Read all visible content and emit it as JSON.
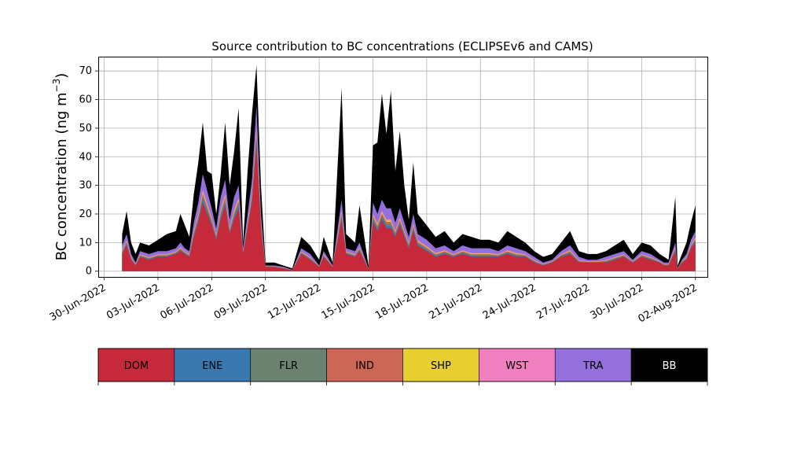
{
  "chart_data": {
    "type": "area",
    "stacked": true,
    "title": "Source contribution to BC concentrations (ECLIPSEv6 and CAMS)",
    "ylabel": "BC concentration (ng m",
    "ylabel_exponent": "−3",
    "ylabel_suffix": ")",
    "xlabel": "",
    "ylim": [
      -2,
      75
    ],
    "y_ticks": [
      0,
      10,
      20,
      30,
      40,
      50,
      60,
      70
    ],
    "x_range": [
      "2022-06-29T16:00",
      "2022-08-02T16:00"
    ],
    "x_ticks": [
      "2022-06-30",
      "2022-07-03",
      "2022-07-06",
      "2022-07-09",
      "2022-07-12",
      "2022-07-15",
      "2022-07-18",
      "2022-07-21",
      "2022-07-24",
      "2022-07-27",
      "2022-07-30",
      "2022-08-02"
    ],
    "x_tick_labels": [
      "30-Jun-2022",
      "03-Jul-2022",
      "06-Jul-2022",
      "09-Jul-2022",
      "12-Jul-2022",
      "15-Jul-2022",
      "18-Jul-2022",
      "21-Jul-2022",
      "24-Jul-2022",
      "27-Jul-2022",
      "30-Jul-2022",
      "02-Aug-2022"
    ],
    "grid": true,
    "series_colors": {
      "DOM": "#c62a3a",
      "ENE": "#3a78b0",
      "FLR": "#6b8270",
      "IND": "#cc6655",
      "SHP": "#e6cf2e",
      "WST": "#f080c0",
      "TRA": "#9370db",
      "BB": "#000000"
    },
    "total_points": [
      [
        "2022-07-01T00:00",
        13
      ],
      [
        "2022-07-01T06:00",
        21
      ],
      [
        "2022-07-01T12:00",
        10
      ],
      [
        "2022-07-01T18:00",
        6
      ],
      [
        "2022-07-02T00:00",
        10
      ],
      [
        "2022-07-02T12:00",
        9
      ],
      [
        "2022-07-03T00:00",
        11
      ],
      [
        "2022-07-03T12:00",
        13
      ],
      [
        "2022-07-04T00:00",
        14
      ],
      [
        "2022-07-04T06:00",
        20
      ],
      [
        "2022-07-04T12:00",
        16
      ],
      [
        "2022-07-04T18:00",
        12
      ],
      [
        "2022-07-05T00:00",
        27
      ],
      [
        "2022-07-05T06:00",
        38
      ],
      [
        "2022-07-05T12:00",
        52
      ],
      [
        "2022-07-05T18:00",
        35
      ],
      [
        "2022-07-06T00:00",
        34
      ],
      [
        "2022-07-06T06:00",
        20
      ],
      [
        "2022-07-06T12:00",
        34
      ],
      [
        "2022-07-06T18:00",
        52
      ],
      [
        "2022-07-07T00:00",
        30
      ],
      [
        "2022-07-07T06:00",
        42
      ],
      [
        "2022-07-07T12:00",
        57
      ],
      [
        "2022-07-07T18:00",
        10
      ],
      [
        "2022-07-08T00:00",
        35
      ],
      [
        "2022-07-08T06:00",
        55
      ],
      [
        "2022-07-08T12:00",
        72
      ],
      [
        "2022-07-08T18:00",
        30
      ],
      [
        "2022-07-09T00:00",
        3
      ],
      [
        "2022-07-09T12:00",
        3
      ],
      [
        "2022-07-10T00:00",
        2
      ],
      [
        "2022-07-10T12:00",
        1
      ],
      [
        "2022-07-11T00:00",
        12
      ],
      [
        "2022-07-11T12:00",
        9
      ],
      [
        "2022-07-12T00:00",
        4
      ],
      [
        "2022-07-12T06:00",
        12
      ],
      [
        "2022-07-12T18:00",
        3
      ],
      [
        "2022-07-13T06:00",
        64
      ],
      [
        "2022-07-13T12:00",
        13
      ],
      [
        "2022-07-14T00:00",
        10
      ],
      [
        "2022-07-14T06:00",
        23
      ],
      [
        "2022-07-14T18:00",
        2
      ],
      [
        "2022-07-15T00:00",
        44
      ],
      [
        "2022-07-15T06:00",
        45
      ],
      [
        "2022-07-15T12:00",
        62
      ],
      [
        "2022-07-15T18:00",
        48
      ],
      [
        "2022-07-16T00:00",
        63
      ],
      [
        "2022-07-16T06:00",
        35
      ],
      [
        "2022-07-16T12:00",
        49
      ],
      [
        "2022-07-16T18:00",
        30
      ],
      [
        "2022-07-17T00:00",
        18
      ],
      [
        "2022-07-17T06:00",
        38
      ],
      [
        "2022-07-17T12:00",
        20
      ],
      [
        "2022-07-18T00:00",
        16
      ],
      [
        "2022-07-18T12:00",
        12
      ],
      [
        "2022-07-19T00:00",
        14
      ],
      [
        "2022-07-19T12:00",
        10
      ],
      [
        "2022-07-20T00:00",
        13
      ],
      [
        "2022-07-20T12:00",
        12
      ],
      [
        "2022-07-21T00:00",
        11
      ],
      [
        "2022-07-21T12:00",
        11
      ],
      [
        "2022-07-22T00:00",
        10
      ],
      [
        "2022-07-22T12:00",
        14
      ],
      [
        "2022-07-23T00:00",
        12
      ],
      [
        "2022-07-23T12:00",
        10
      ],
      [
        "2022-07-24T00:00",
        7
      ],
      [
        "2022-07-24T12:00",
        5
      ],
      [
        "2022-07-25T00:00",
        6
      ],
      [
        "2022-07-25T12:00",
        10
      ],
      [
        "2022-07-26T00:00",
        14
      ],
      [
        "2022-07-26T12:00",
        7
      ],
      [
        "2022-07-27T00:00",
        6
      ],
      [
        "2022-07-27T12:00",
        6
      ],
      [
        "2022-07-28T00:00",
        7
      ],
      [
        "2022-07-28T12:00",
        9
      ],
      [
        "2022-07-29T00:00",
        11
      ],
      [
        "2022-07-29T12:00",
        6
      ],
      [
        "2022-07-30T00:00",
        10
      ],
      [
        "2022-07-30T12:00",
        9
      ],
      [
        "2022-07-31T00:00",
        6
      ],
      [
        "2022-07-31T06:00",
        5
      ],
      [
        "2022-07-31T12:00",
        4
      ],
      [
        "2022-07-31T21:00",
        26
      ],
      [
        "2022-08-01T00:00",
        2
      ],
      [
        "2022-08-01T06:00",
        6
      ],
      [
        "2022-08-01T12:00",
        10
      ],
      [
        "2022-08-01T18:00",
        17
      ],
      [
        "2022-08-02T00:00",
        23
      ]
    ],
    "tra_upper_points": [
      [
        "2022-07-01T00:00",
        9
      ],
      [
        "2022-07-01T06:00",
        13
      ],
      [
        "2022-07-01T12:00",
        6
      ],
      [
        "2022-07-01T18:00",
        3
      ],
      [
        "2022-07-02T00:00",
        7
      ],
      [
        "2022-07-02T12:00",
        6
      ],
      [
        "2022-07-03T00:00",
        7
      ],
      [
        "2022-07-03T12:00",
        7
      ],
      [
        "2022-07-04T00:00",
        8
      ],
      [
        "2022-07-04T06:00",
        10
      ],
      [
        "2022-07-04T12:00",
        8
      ],
      [
        "2022-07-04T18:00",
        7
      ],
      [
        "2022-07-05T00:00",
        17
      ],
      [
        "2022-07-05T06:00",
        24
      ],
      [
        "2022-07-05T12:00",
        34
      ],
      [
        "2022-07-05T18:00",
        28
      ],
      [
        "2022-07-06T00:00",
        22
      ],
      [
        "2022-07-06T06:00",
        15
      ],
      [
        "2022-07-06T12:00",
        26
      ],
      [
        "2022-07-06T18:00",
        32
      ],
      [
        "2022-07-07T00:00",
        18
      ],
      [
        "2022-07-07T06:00",
        26
      ],
      [
        "2022-07-07T12:00",
        30
      ],
      [
        "2022-07-07T18:00",
        8
      ],
      [
        "2022-07-08T00:00",
        20
      ],
      [
        "2022-07-08T06:00",
        32
      ],
      [
        "2022-07-08T12:00",
        58
      ],
      [
        "2022-07-08T18:00",
        20
      ],
      [
        "2022-07-09T00:00",
        2
      ],
      [
        "2022-07-09T12:00",
        2
      ],
      [
        "2022-07-10T00:00",
        1.5
      ],
      [
        "2022-07-10T12:00",
        0.5
      ],
      [
        "2022-07-11T00:00",
        8
      ],
      [
        "2022-07-11T12:00",
        6
      ],
      [
        "2022-07-12T00:00",
        2
      ],
      [
        "2022-07-12T06:00",
        7
      ],
      [
        "2022-07-12T18:00",
        2
      ],
      [
        "2022-07-13T06:00",
        25
      ],
      [
        "2022-07-13T12:00",
        8
      ],
      [
        "2022-07-14T00:00",
        7
      ],
      [
        "2022-07-14T06:00",
        10
      ],
      [
        "2022-07-14T18:00",
        1
      ],
      [
        "2022-07-15T00:00",
        24
      ],
      [
        "2022-07-15T06:00",
        20
      ],
      [
        "2022-07-15T12:00",
        25
      ],
      [
        "2022-07-15T18:00",
        22
      ],
      [
        "2022-07-16T00:00",
        22
      ],
      [
        "2022-07-16T06:00",
        17
      ],
      [
        "2022-07-16T12:00",
        22
      ],
      [
        "2022-07-16T18:00",
        17
      ],
      [
        "2022-07-17T00:00",
        12
      ],
      [
        "2022-07-17T06:00",
        20
      ],
      [
        "2022-07-17T12:00",
        13
      ],
      [
        "2022-07-18T00:00",
        11
      ],
      [
        "2022-07-18T12:00",
        8
      ],
      [
        "2022-07-19T00:00",
        9
      ],
      [
        "2022-07-19T12:00",
        7
      ],
      [
        "2022-07-20T00:00",
        9
      ],
      [
        "2022-07-20T12:00",
        8
      ],
      [
        "2022-07-21T00:00",
        8
      ],
      [
        "2022-07-21T12:00",
        8
      ],
      [
        "2022-07-22T00:00",
        7
      ],
      [
        "2022-07-22T12:00",
        9
      ],
      [
        "2022-07-23T00:00",
        8
      ],
      [
        "2022-07-23T12:00",
        7
      ],
      [
        "2022-07-24T00:00",
        5
      ],
      [
        "2022-07-24T12:00",
        3
      ],
      [
        "2022-07-25T00:00",
        4
      ],
      [
        "2022-07-25T12:00",
        7
      ],
      [
        "2022-07-26T00:00",
        9
      ],
      [
        "2022-07-26T12:00",
        5
      ],
      [
        "2022-07-27T00:00",
        4
      ],
      [
        "2022-07-27T12:00",
        4
      ],
      [
        "2022-07-28T00:00",
        5
      ],
      [
        "2022-07-28T12:00",
        6
      ],
      [
        "2022-07-29T00:00",
        7
      ],
      [
        "2022-07-29T12:00",
        4
      ],
      [
        "2022-07-30T00:00",
        7
      ],
      [
        "2022-07-30T12:00",
        6
      ],
      [
        "2022-07-31T00:00",
        4
      ],
      [
        "2022-07-31T06:00",
        3
      ],
      [
        "2022-07-31T12:00",
        3
      ],
      [
        "2022-07-31T21:00",
        10
      ],
      [
        "2022-08-01T00:00",
        1
      ],
      [
        "2022-08-01T06:00",
        4
      ],
      [
        "2022-08-01T12:00",
        6
      ],
      [
        "2022-08-01T18:00",
        11
      ],
      [
        "2022-08-02T00:00",
        14
      ]
    ],
    "dom_points": [
      [
        "2022-07-01T00:00",
        6
      ],
      [
        "2022-07-01T06:00",
        9
      ],
      [
        "2022-07-01T12:00",
        4
      ],
      [
        "2022-07-01T18:00",
        2
      ],
      [
        "2022-07-02T00:00",
        5
      ],
      [
        "2022-07-02T12:00",
        4
      ],
      [
        "2022-07-03T00:00",
        5
      ],
      [
        "2022-07-03T12:00",
        5
      ],
      [
        "2022-07-04T00:00",
        6
      ],
      [
        "2022-07-04T06:00",
        7
      ],
      [
        "2022-07-04T12:00",
        6
      ],
      [
        "2022-07-04T18:00",
        5
      ],
      [
        "2022-07-05T00:00",
        12
      ],
      [
        "2022-07-05T06:00",
        17
      ],
      [
        "2022-07-05T12:00",
        24
      ],
      [
        "2022-07-05T18:00",
        20
      ],
      [
        "2022-07-06T00:00",
        16
      ],
      [
        "2022-07-06T06:00",
        11
      ],
      [
        "2022-07-06T12:00",
        18
      ],
      [
        "2022-07-06T18:00",
        23
      ],
      [
        "2022-07-07T00:00",
        13
      ],
      [
        "2022-07-07T06:00",
        18
      ],
      [
        "2022-07-07T12:00",
        22
      ],
      [
        "2022-07-07T18:00",
        6
      ],
      [
        "2022-07-08T00:00",
        15
      ],
      [
        "2022-07-08T06:00",
        24
      ],
      [
        "2022-07-08T12:00",
        44
      ],
      [
        "2022-07-08T18:00",
        15
      ],
      [
        "2022-07-09T00:00",
        1.5
      ],
      [
        "2022-07-09T12:00",
        1.5
      ],
      [
        "2022-07-10T00:00",
        1
      ],
      [
        "2022-07-10T12:00",
        0.3
      ],
      [
        "2022-07-11T00:00",
        6
      ],
      [
        "2022-07-11T12:00",
        4
      ],
      [
        "2022-07-12T00:00",
        1.5
      ],
      [
        "2022-07-12T06:00",
        5
      ],
      [
        "2022-07-12T18:00",
        1.5
      ],
      [
        "2022-07-13T06:00",
        18
      ],
      [
        "2022-07-13T12:00",
        6
      ],
      [
        "2022-07-14T00:00",
        5
      ],
      [
        "2022-07-14T06:00",
        7
      ],
      [
        "2022-07-14T18:00",
        0.7
      ],
      [
        "2022-07-15T00:00",
        17
      ],
      [
        "2022-07-15T06:00",
        14
      ],
      [
        "2022-07-15T12:00",
        18
      ],
      [
        "2022-07-15T18:00",
        15
      ],
      [
        "2022-07-16T00:00",
        15
      ],
      [
        "2022-07-16T06:00",
        12
      ],
      [
        "2022-07-16T12:00",
        16
      ],
      [
        "2022-07-16T18:00",
        12
      ],
      [
        "2022-07-17T00:00",
        8
      ],
      [
        "2022-07-17T06:00",
        14
      ],
      [
        "2022-07-17T12:00",
        9
      ],
      [
        "2022-07-18T00:00",
        7
      ],
      [
        "2022-07-18T12:00",
        5
      ],
      [
        "2022-07-19T00:00",
        6
      ],
      [
        "2022-07-19T12:00",
        5
      ],
      [
        "2022-07-20T00:00",
        6
      ],
      [
        "2022-07-20T12:00",
        5
      ],
      [
        "2022-07-21T00:00",
        5
      ],
      [
        "2022-07-21T12:00",
        5
      ],
      [
        "2022-07-22T00:00",
        5
      ],
      [
        "2022-07-22T12:00",
        6
      ],
      [
        "2022-07-23T00:00",
        5
      ],
      [
        "2022-07-23T12:00",
        5
      ],
      [
        "2022-07-24T00:00",
        3
      ],
      [
        "2022-07-24T12:00",
        2
      ],
      [
        "2022-07-25T00:00",
        3
      ],
      [
        "2022-07-25T12:00",
        5
      ],
      [
        "2022-07-26T00:00",
        6
      ],
      [
        "2022-07-26T12:00",
        3
      ],
      [
        "2022-07-27T00:00",
        3
      ],
      [
        "2022-07-27T12:00",
        3
      ],
      [
        "2022-07-28T00:00",
        3
      ],
      [
        "2022-07-28T12:00",
        4
      ],
      [
        "2022-07-29T00:00",
        5
      ],
      [
        "2022-07-29T12:00",
        3
      ],
      [
        "2022-07-30T00:00",
        5
      ],
      [
        "2022-07-30T12:00",
        4
      ],
      [
        "2022-07-31T00:00",
        3
      ],
      [
        "2022-07-31T06:00",
        2
      ],
      [
        "2022-07-31T12:00",
        2
      ],
      [
        "2022-07-31T21:00",
        7
      ],
      [
        "2022-08-01T00:00",
        0.7
      ],
      [
        "2022-08-01T06:00",
        3
      ],
      [
        "2022-08-01T12:00",
        4
      ],
      [
        "2022-08-01T18:00",
        8
      ],
      [
        "2022-08-02T00:00",
        10
      ]
    ],
    "legend": {
      "placement": "bottom",
      "items": [
        {
          "label": "DOM",
          "color": "#c62a3a",
          "text_color": "#000000"
        },
        {
          "label": "ENE",
          "color": "#3a78b0",
          "text_color": "#000000"
        },
        {
          "label": "FLR",
          "color": "#6b8270",
          "text_color": "#000000"
        },
        {
          "label": "IND",
          "color": "#cc6655",
          "text_color": "#000000"
        },
        {
          "label": "SHP",
          "color": "#e6cf2e",
          "text_color": "#000000"
        },
        {
          "label": "WST",
          "color": "#f080c0",
          "text_color": "#000000"
        },
        {
          "label": "TRA",
          "color": "#9370db",
          "text_color": "#000000"
        },
        {
          "label": "BB",
          "color": "#000000",
          "text_color": "#ffffff"
        }
      ]
    }
  }
}
